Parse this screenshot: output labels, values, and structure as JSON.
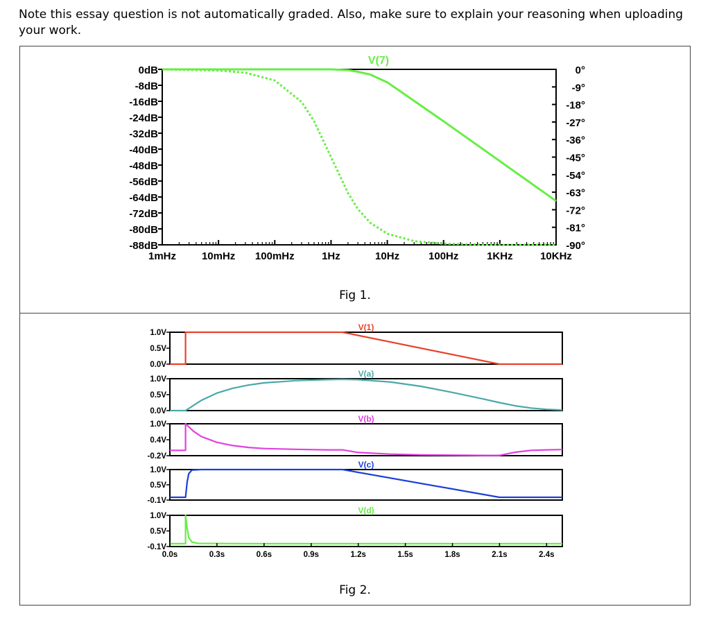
{
  "note": "Note this essay question is not automatically graded.  Also, make sure to explain your reasoning when uploading your work.",
  "fig1_label": "Fig 1.",
  "fig2_label": "Fig 2.",
  "colors": {
    "v7": "#66ee44",
    "v1": "#e8412a",
    "va": "#4aa8a8",
    "vb": "#e040e0",
    "vc": "#1a3fd8",
    "vd": "#66ee44"
  },
  "chart_data": [
    {
      "type": "line",
      "title": "V(7)",
      "x_scale": "log",
      "x_ticks": [
        "1mHz",
        "10mHz",
        "100mHz",
        "1Hz",
        "10Hz",
        "100Hz",
        "1KHz",
        "10KHz"
      ],
      "x_values": [
        0.001,
        0.01,
        0.1,
        1,
        10,
        100,
        1000,
        10000
      ],
      "y_ticks": [
        "0dB",
        "-8dB",
        "-16dB",
        "-24dB",
        "-32dB",
        "-40dB",
        "-48dB",
        "-56dB",
        "-64dB",
        "-72dB",
        "-80dB",
        "-88dB"
      ],
      "ylim": [
        -88,
        0
      ],
      "y2_ticks": [
        "0°",
        "-9°",
        "-18°",
        "-27°",
        "-36°",
        "-45°",
        "-54°",
        "-63°",
        "-72°",
        "-81°",
        "-90°"
      ],
      "y2lim": [
        -90,
        0
      ],
      "series": [
        {
          "name": "V(7)",
          "style": "solid",
          "axis": "magnitude",
          "x": [
            0.001,
            0.01,
            0.1,
            0.5,
            1,
            2,
            3,
            5,
            10,
            100,
            1000,
            10000
          ],
          "y": [
            0,
            0,
            0,
            0,
            0,
            -0.4,
            -1.2,
            -2.6,
            -6.5,
            -26,
            -46,
            -66
          ]
        },
        {
          "name": "",
          "style": "dotted",
          "axis": "phase",
          "x": [
            0.001,
            0.01,
            0.03,
            0.1,
            0.3,
            0.5,
            1,
            2,
            3,
            5,
            10,
            30,
            100,
            1000,
            10000
          ],
          "y": [
            0,
            -0.6,
            -1.7,
            -5.7,
            -16.7,
            -26.6,
            -45,
            -63.4,
            -71.6,
            -78.7,
            -84.3,
            -88.1,
            -89.4,
            -90,
            -90
          ]
        }
      ]
    },
    {
      "type": "line",
      "x_ticks": [
        "0.0s",
        "0.3s",
        "0.6s",
        "0.9s",
        "1.2s",
        "1.5s",
        "1.8s",
        "2.1s",
        "2.4s"
      ],
      "xlim": [
        0,
        2.5
      ],
      "panels": [
        {
          "name": "V(1)",
          "y_ticks": [
            "1.0V",
            "0.5V",
            "0.0V"
          ],
          "ylim": [
            0,
            1
          ],
          "x": [
            0,
            0.1,
            0.1,
            1.1,
            2.1,
            2.5
          ],
          "y": [
            0,
            0,
            1,
            1,
            0,
            0
          ]
        },
        {
          "name": "V(a)",
          "y_ticks": [
            "1.0V",
            "0.5V",
            "0.0V"
          ],
          "ylim": [
            0,
            1
          ],
          "x": [
            0,
            0.1,
            0.15,
            0.2,
            0.3,
            0.4,
            0.5,
            0.6,
            0.8,
            1.0,
            1.1,
            1.2,
            1.4,
            1.6,
            1.8,
            2.0,
            2.1,
            2.2,
            2.3,
            2.4,
            2.5
          ],
          "y": [
            0,
            0,
            0.16,
            0.32,
            0.55,
            0.7,
            0.8,
            0.87,
            0.94,
            0.97,
            0.98,
            0.97,
            0.9,
            0.76,
            0.57,
            0.36,
            0.25,
            0.15,
            0.08,
            0.04,
            0.02
          ]
        },
        {
          "name": "V(b)",
          "y_ticks": [
            "1.0V",
            "0.4V",
            "-0.2V"
          ],
          "ylim": [
            -0.2,
            1
          ],
          "x": [
            0,
            0.1,
            0.1,
            0.15,
            0.2,
            0.3,
            0.4,
            0.5,
            0.6,
            0.8,
            1.0,
            1.1,
            1.2,
            1.4,
            1.6,
            1.8,
            2.0,
            2.1,
            2.2,
            2.3,
            2.4,
            2.5
          ],
          "y": [
            0,
            0,
            1,
            0.72,
            0.52,
            0.3,
            0.18,
            0.11,
            0.07,
            0.04,
            0.02,
            0.02,
            -0.08,
            -0.14,
            -0.17,
            -0.18,
            -0.19,
            -0.19,
            -0.07,
            0,
            0.02,
            0.03
          ]
        },
        {
          "name": "V(c)",
          "y_ticks": [
            "1.0V",
            "0.5V",
            "-0.1V"
          ],
          "ylim": [
            -0.1,
            1
          ],
          "x": [
            0,
            0.1,
            0.11,
            0.12,
            0.14,
            0.2,
            1.1,
            2.1,
            2.5
          ],
          "y": [
            0,
            0,
            0.55,
            0.85,
            0.98,
            1,
            1,
            0,
            0
          ]
        },
        {
          "name": "V(d)",
          "y_ticks": [
            "1.0V",
            "0.5V",
            "-0.1V"
          ],
          "ylim": [
            -0.1,
            1
          ],
          "x": [
            0,
            0.1,
            0.1,
            0.11,
            0.12,
            0.14,
            0.18,
            0.5,
            2.5
          ],
          "y": [
            0,
            0,
            1,
            0.55,
            0.22,
            0.06,
            0.01,
            0,
            0
          ]
        }
      ]
    }
  ]
}
